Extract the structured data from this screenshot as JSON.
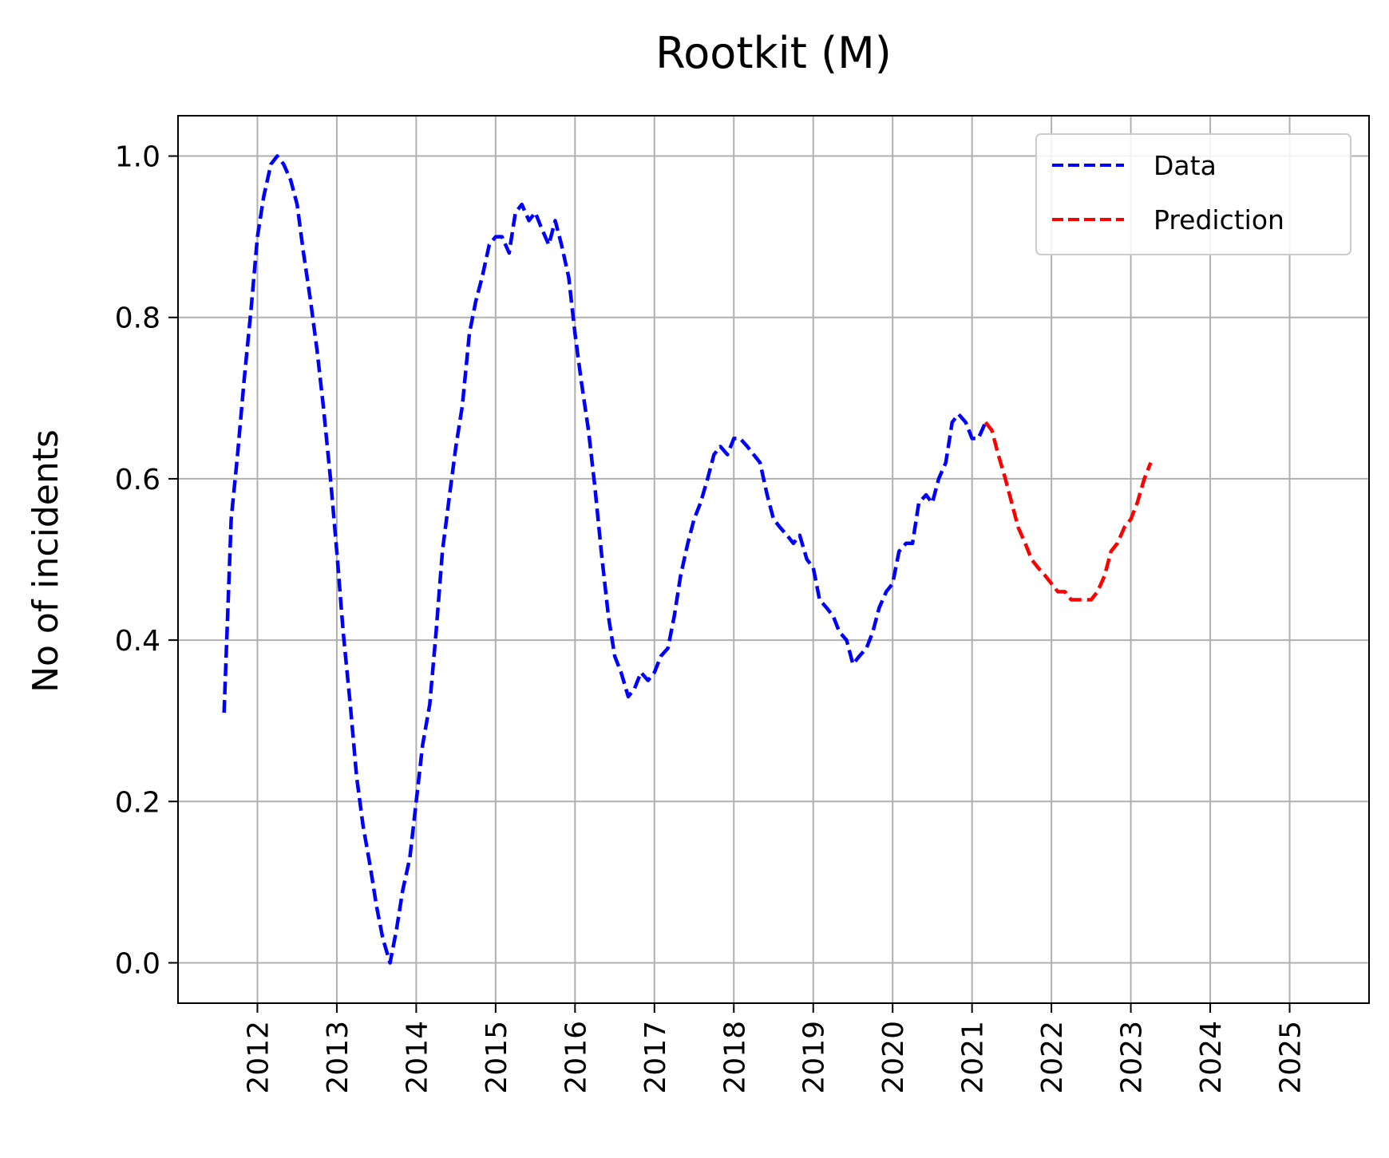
{
  "chart_data": {
    "type": "line",
    "title": "Rootkit (M)",
    "xlabel": "",
    "ylabel": "No of incidents",
    "xlim": [
      2011.0,
      2026.0
    ],
    "ylim": [
      -0.05,
      1.05
    ],
    "x_ticks": [
      2012,
      2013,
      2014,
      2015,
      2016,
      2017,
      2018,
      2019,
      2020,
      2021,
      2022,
      2023,
      2024,
      2025
    ],
    "y_ticks": [
      0.0,
      0.2,
      0.4,
      0.6,
      0.8,
      1.0
    ],
    "y_tick_labels": [
      "0.0",
      "0.2",
      "0.4",
      "0.6",
      "0.8",
      "1.0"
    ],
    "grid": true,
    "legend": {
      "position": "top-right",
      "entries": [
        "Data",
        "Prediction"
      ]
    },
    "series": [
      {
        "name": "Data",
        "color": "#0000ff",
        "style": "dashed",
        "points": [
          [
            2011.58,
            0.31
          ],
          [
            2011.67,
            0.55
          ],
          [
            2011.75,
            0.63
          ],
          [
            2011.83,
            0.72
          ],
          [
            2011.92,
            0.81
          ],
          [
            2012.0,
            0.9
          ],
          [
            2012.08,
            0.95
          ],
          [
            2012.17,
            0.99
          ],
          [
            2012.25,
            1.0
          ],
          [
            2012.33,
            0.99
          ],
          [
            2012.42,
            0.97
          ],
          [
            2012.5,
            0.94
          ],
          [
            2012.58,
            0.88
          ],
          [
            2012.67,
            0.82
          ],
          [
            2012.75,
            0.76
          ],
          [
            2012.83,
            0.69
          ],
          [
            2012.92,
            0.6
          ],
          [
            2013.0,
            0.51
          ],
          [
            2013.08,
            0.41
          ],
          [
            2013.17,
            0.32
          ],
          [
            2013.25,
            0.23
          ],
          [
            2013.33,
            0.17
          ],
          [
            2013.42,
            0.12
          ],
          [
            2013.5,
            0.07
          ],
          [
            2013.58,
            0.03
          ],
          [
            2013.67,
            0.0
          ],
          [
            2013.75,
            0.04
          ],
          [
            2013.83,
            0.09
          ],
          [
            2013.92,
            0.13
          ],
          [
            2014.0,
            0.2
          ],
          [
            2014.08,
            0.27
          ],
          [
            2014.17,
            0.32
          ],
          [
            2014.25,
            0.41
          ],
          [
            2014.33,
            0.51
          ],
          [
            2014.42,
            0.58
          ],
          [
            2014.5,
            0.64
          ],
          [
            2014.58,
            0.69
          ],
          [
            2014.67,
            0.78
          ],
          [
            2014.75,
            0.82
          ],
          [
            2014.83,
            0.85
          ],
          [
            2014.92,
            0.89
          ],
          [
            2015.0,
            0.9
          ],
          [
            2015.08,
            0.9
          ],
          [
            2015.17,
            0.88
          ],
          [
            2015.25,
            0.93
          ],
          [
            2015.33,
            0.94
          ],
          [
            2015.42,
            0.92
          ],
          [
            2015.5,
            0.93
          ],
          [
            2015.58,
            0.91
          ],
          [
            2015.67,
            0.89
          ],
          [
            2015.75,
            0.92
          ],
          [
            2015.83,
            0.89
          ],
          [
            2015.92,
            0.85
          ],
          [
            2016.0,
            0.78
          ],
          [
            2016.08,
            0.72
          ],
          [
            2016.17,
            0.66
          ],
          [
            2016.25,
            0.59
          ],
          [
            2016.33,
            0.51
          ],
          [
            2016.42,
            0.43
          ],
          [
            2016.5,
            0.38
          ],
          [
            2016.58,
            0.36
          ],
          [
            2016.67,
            0.33
          ],
          [
            2016.75,
            0.34
          ],
          [
            2016.83,
            0.36
          ],
          [
            2016.92,
            0.35
          ],
          [
            2017.0,
            0.36
          ],
          [
            2017.08,
            0.38
          ],
          [
            2017.17,
            0.39
          ],
          [
            2017.25,
            0.43
          ],
          [
            2017.33,
            0.48
          ],
          [
            2017.42,
            0.52
          ],
          [
            2017.5,
            0.55
          ],
          [
            2017.58,
            0.57
          ],
          [
            2017.67,
            0.6
          ],
          [
            2017.75,
            0.63
          ],
          [
            2017.83,
            0.64
          ],
          [
            2017.92,
            0.63
          ],
          [
            2018.0,
            0.65
          ],
          [
            2018.08,
            0.65
          ],
          [
            2018.17,
            0.64
          ],
          [
            2018.25,
            0.63
          ],
          [
            2018.33,
            0.62
          ],
          [
            2018.42,
            0.58
          ],
          [
            2018.5,
            0.55
          ],
          [
            2018.58,
            0.54
          ],
          [
            2018.67,
            0.53
          ],
          [
            2018.75,
            0.52
          ],
          [
            2018.83,
            0.53
          ],
          [
            2018.92,
            0.5
          ],
          [
            2019.0,
            0.49
          ],
          [
            2019.08,
            0.45
          ],
          [
            2019.17,
            0.44
          ],
          [
            2019.25,
            0.43
          ],
          [
            2019.33,
            0.41
          ],
          [
            2019.42,
            0.4
          ],
          [
            2019.5,
            0.37
          ],
          [
            2019.58,
            0.38
          ],
          [
            2019.67,
            0.39
          ],
          [
            2019.75,
            0.41
          ],
          [
            2019.83,
            0.44
          ],
          [
            2019.92,
            0.46
          ],
          [
            2020.0,
            0.47
          ],
          [
            2020.08,
            0.51
          ],
          [
            2020.17,
            0.52
          ],
          [
            2020.25,
            0.52
          ],
          [
            2020.33,
            0.57
          ],
          [
            2020.42,
            0.58
          ],
          [
            2020.5,
            0.57
          ],
          [
            2020.58,
            0.6
          ],
          [
            2020.67,
            0.62
          ],
          [
            2020.75,
            0.67
          ],
          [
            2020.83,
            0.68
          ],
          [
            2020.92,
            0.67
          ],
          [
            2021.0,
            0.65
          ],
          [
            2021.08,
            0.65
          ],
          [
            2021.17,
            0.67
          ]
        ]
      },
      {
        "name": "Prediction",
        "color": "#ff0000",
        "style": "dashed",
        "points": [
          [
            2021.17,
            0.67
          ],
          [
            2021.25,
            0.66
          ],
          [
            2021.33,
            0.63
          ],
          [
            2021.42,
            0.6
          ],
          [
            2021.5,
            0.57
          ],
          [
            2021.58,
            0.54
          ],
          [
            2021.67,
            0.52
          ],
          [
            2021.75,
            0.5
          ],
          [
            2021.83,
            0.49
          ],
          [
            2021.92,
            0.48
          ],
          [
            2022.0,
            0.47
          ],
          [
            2022.08,
            0.46
          ],
          [
            2022.17,
            0.46
          ],
          [
            2022.25,
            0.45
          ],
          [
            2022.33,
            0.45
          ],
          [
            2022.42,
            0.45
          ],
          [
            2022.5,
            0.45
          ],
          [
            2022.58,
            0.46
          ],
          [
            2022.67,
            0.48
          ],
          [
            2022.75,
            0.51
          ],
          [
            2022.83,
            0.52
          ],
          [
            2022.92,
            0.54
          ],
          [
            2023.0,
            0.55
          ],
          [
            2023.08,
            0.57
          ],
          [
            2023.17,
            0.6
          ],
          [
            2023.25,
            0.62
          ]
        ]
      }
    ]
  }
}
